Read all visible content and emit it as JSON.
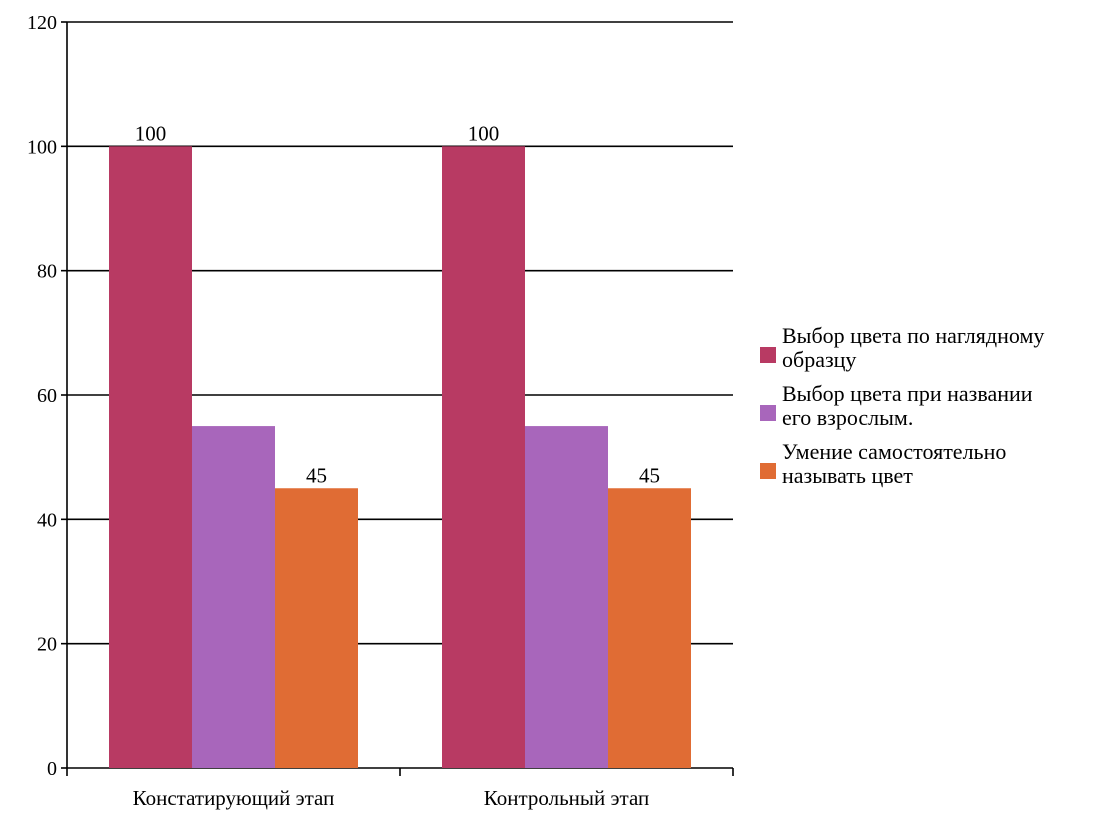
{
  "chart_data": {
    "type": "bar",
    "categories": [
      "Констатирующий этап",
      "Контрольный этап"
    ],
    "series": [
      {
        "name": "Выбор цвета по наглядному образцу",
        "color": "#b83a63",
        "values": [
          100,
          100
        ],
        "labels": [
          "100",
          "100"
        ]
      },
      {
        "name": "Выбор цвета при названии его взрослым.",
        "color": "#a866bb",
        "values": [
          55,
          55
        ],
        "labels": [
          "",
          ""
        ]
      },
      {
        "name": "Умение самостоятельно называть цвет",
        "color": "#e06c34",
        "values": [
          45,
          45
        ],
        "labels": [
          "45",
          "45"
        ]
      }
    ],
    "legend_lines": [
      [
        "Выбор цвета по наглядному",
        "образцу"
      ],
      [
        "Выбор цвета при названии",
        "его взрослым."
      ],
      [
        "Умение самостоятельно",
        "называть цвет"
      ]
    ],
    "yticks": [
      "0",
      "20",
      "40",
      "60",
      "80",
      "100",
      "120"
    ],
    "ylim": [
      0,
      120
    ],
    "grid": true,
    "legend_position": "right",
    "title": "",
    "xlabel": "",
    "ylabel": ""
  }
}
